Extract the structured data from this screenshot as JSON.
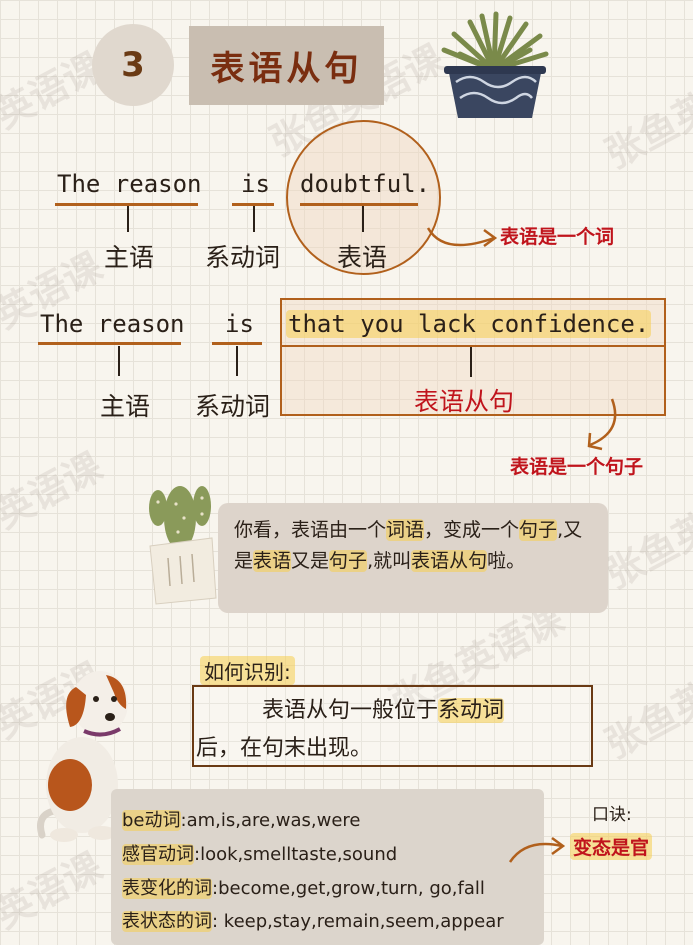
{
  "section": {
    "number": "3",
    "title": "表语从句"
  },
  "sentence1": {
    "subject": "The reason",
    "verb": "is",
    "predicative": "doubtful.",
    "label_subject": "主语",
    "label_verb": "系动词",
    "label_predicative": "表语",
    "note": "表语是一个词"
  },
  "sentence2": {
    "subject": "The reason",
    "verb": "is",
    "clause": "that you lack confidence.",
    "label_subject": "主语",
    "label_verb": "系动词",
    "label_clause": "表语从句",
    "note": "表语是一个句子"
  },
  "explanation": {
    "p1": "你看，表语由一个",
    "h1": "词语",
    "p2": "，变成一个",
    "h2": "句子",
    "p3": ",又是",
    "h3": "表语",
    "p4": "又是",
    "h4": "句子",
    "p5": ",就叫",
    "h5": "表语从句",
    "p6": "啦。"
  },
  "identify": {
    "heading": "如何识别:",
    "line1_a": "表语从句一般位于",
    "line1_hl": "系动词",
    "line2": "后，在句末出现。"
  },
  "verbs": [
    {
      "label": "be动词",
      "items": ":am,is,are,was,were"
    },
    {
      "label": "感官动词",
      "items": ":look,smelltaste,sound"
    },
    {
      "label": "表变化的词",
      "items": ":become,get,grow,turn, go,fall"
    },
    {
      "label": "表状态的词",
      "items": ": keep,stay,remain,seem,appear"
    }
  ],
  "mnemonic": {
    "heading": "口诀:",
    "text": "变态是官"
  },
  "watermarks": [
    "英语课",
    "张鱼英",
    "英语课",
    "张鱼英语课",
    "张鱼英",
    "英语课",
    "英语课",
    "张鱼英",
    "英语课",
    "张鱼英语课"
  ],
  "colors": {
    "accent_red": "#c0141c",
    "underline_orange": "#b1601c",
    "highlight_yellow": "#f5cd50"
  }
}
